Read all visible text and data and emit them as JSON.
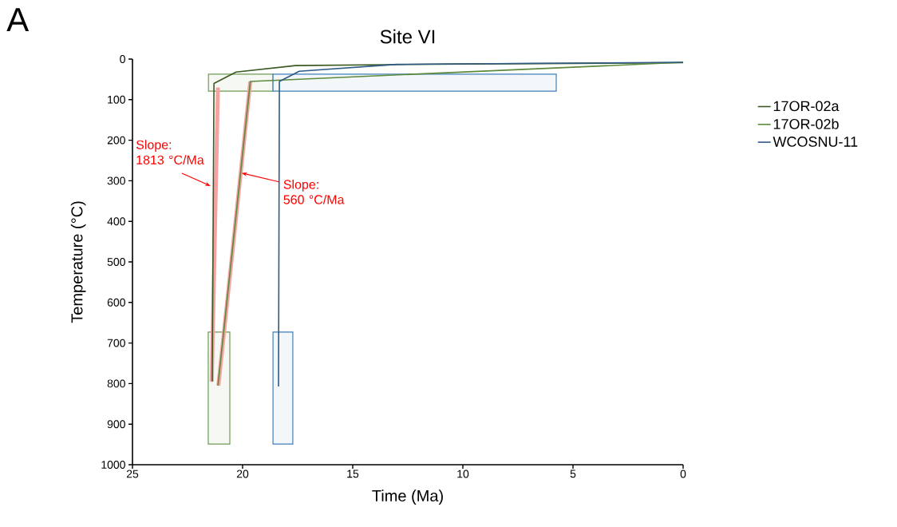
{
  "chart_data": {
    "type": "line",
    "title": "Site VI",
    "xlabel": "Time (Ma)",
    "ylabel": "Temperature (°C)",
    "xlim": [
      25,
      0
    ],
    "ylim": [
      1000,
      0
    ],
    "xticks": [
      25,
      20,
      15,
      10,
      5,
      0
    ],
    "yticks": [
      0,
      100,
      200,
      300,
      400,
      500,
      600,
      700,
      800,
      900,
      1000
    ],
    "grid": false,
    "legend": "top right",
    "marker": "none",
    "line_style": "solid",
    "annotations": [
      "A",
      {
        "text": "Slope: 1813 °C/Ma",
        "x": 21.45,
        "y": 313
      },
      {
        "text": "Slope: 560 °C/Ma",
        "x": 20.05,
        "y": 281
      }
    ],
    "series": [
      {
        "color": "#f4a3a3",
        "x": [
          21.4,
          21.12
        ],
        "values": [
          795,
          70
        ]
      },
      {
        "color": "#f4a3a3",
        "x": [
          21.1,
          19.65
        ],
        "values": [
          805,
          55
        ]
      },
      {
        "color": "#6f9a55",
        "x": [
          21.55,
          18.62
        ],
        "values": [
          null,
          null
        ],
        "lower": [
          37,
          37
        ],
        "upper": [
          79,
          79
        ]
      },
      {
        "color": "#3f7fb8",
        "x": [
          18.62,
          5.76
        ],
        "values": [
          null,
          null
        ],
        "lower": [
          37,
          37
        ],
        "upper": [
          79,
          79
        ]
      },
      {
        "color": "#6f9a55",
        "x": [
          21.56,
          20.58
        ],
        "values": [
          null,
          null
        ],
        "lower": [
          673,
          673
        ],
        "upper": [
          949,
          949
        ]
      },
      {
        "color": "#3f7fb8",
        "x": [
          18.62,
          17.72
        ],
        "values": [
          null,
          null
        ],
        "lower": [
          673,
          673
        ],
        "upper": [
          949,
          949
        ]
      },
      {
        "name": "17OR-02a",
        "color": "#3b5a23",
        "x": [
          21.38,
          21.3,
          20.3,
          17.6,
          10,
          0
        ],
        "values": [
          795,
          60,
          32,
          16,
          12,
          9
        ]
      },
      {
        "name": "17OR-02b",
        "color": "#5b8a3a",
        "x": [
          21.12,
          19.65,
          0
        ],
        "values": [
          805,
          55,
          8
        ]
      },
      {
        "name": "WCOSNU-11",
        "color": "#2e5b87",
        "x": [
          18.37,
          18.33,
          17.43,
          13,
          0
        ],
        "values": [
          807,
          55,
          30,
          13,
          8
        ]
      }
    ]
  }
}
